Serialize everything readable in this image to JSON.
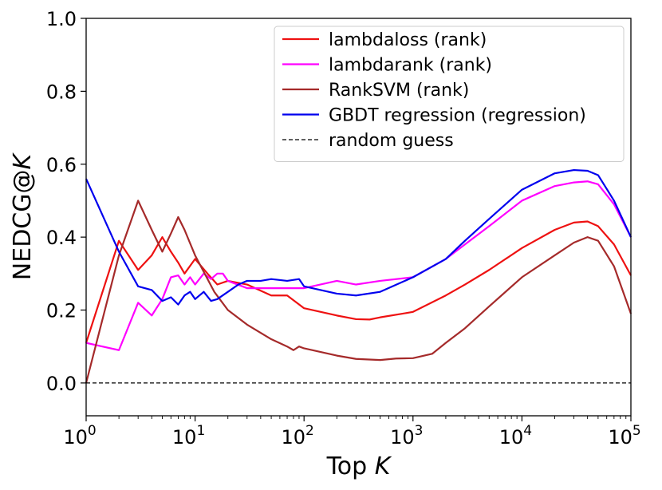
{
  "chart_data": {
    "type": "line",
    "title": "",
    "xlabel": "Top K",
    "ylabel": "NEDCG@K",
    "xscale": "log",
    "xlim": [
      1,
      100000
    ],
    "ylim": [
      -0.09,
      1.0
    ],
    "x_ticks": [
      {
        "value": 1,
        "base": "10",
        "exp": "0"
      },
      {
        "value": 10,
        "base": "10",
        "exp": "1"
      },
      {
        "value": 100,
        "base": "10",
        "exp": "2"
      },
      {
        "value": 1000,
        "base": "10",
        "exp": "3"
      },
      {
        "value": 10000,
        "base": "10",
        "exp": "4"
      },
      {
        "value": 100000,
        "base": "10",
        "exp": "5"
      }
    ],
    "y_ticks": [
      {
        "value": 0.0,
        "label": "0.0"
      },
      {
        "value": 0.2,
        "label": "0.2"
      },
      {
        "value": 0.4,
        "label": "0.4"
      },
      {
        "value": 0.6,
        "label": "0.6"
      },
      {
        "value": 0.8,
        "label": "0.8"
      },
      {
        "value": 1.0,
        "label": "1.0"
      }
    ],
    "grid": false,
    "legend_position": "top-right",
    "series": [
      {
        "name": "lambdaloss (rank)",
        "color": "#ee1111",
        "dash": "solid",
        "points": [
          [
            1,
            0.11
          ],
          [
            2,
            0.39
          ],
          [
            3,
            0.31
          ],
          [
            4,
            0.35
          ],
          [
            5,
            0.4
          ],
          [
            6,
            0.36
          ],
          [
            7,
            0.33
          ],
          [
            8,
            0.3
          ],
          [
            10,
            0.34
          ],
          [
            13,
            0.3
          ],
          [
            16,
            0.27
          ],
          [
            20,
            0.28
          ],
          [
            30,
            0.27
          ],
          [
            50,
            0.24
          ],
          [
            70,
            0.24
          ],
          [
            100,
            0.205
          ],
          [
            200,
            0.185
          ],
          [
            300,
            0.175
          ],
          [
            400,
            0.174
          ],
          [
            500,
            0.18
          ],
          [
            800,
            0.19
          ],
          [
            1000,
            0.195
          ],
          [
            2000,
            0.24
          ],
          [
            3000,
            0.27
          ],
          [
            5000,
            0.31
          ],
          [
            10000,
            0.37
          ],
          [
            20000,
            0.42
          ],
          [
            30000,
            0.44
          ],
          [
            40000,
            0.443
          ],
          [
            50000,
            0.43
          ],
          [
            70000,
            0.38
          ],
          [
            100000,
            0.295
          ]
        ]
      },
      {
        "name": "lambdarank (rank)",
        "color": "#ff00ff",
        "dash": "solid",
        "points": [
          [
            1,
            0.11
          ],
          [
            2,
            0.09
          ],
          [
            3,
            0.22
          ],
          [
            4,
            0.185
          ],
          [
            5,
            0.23
          ],
          [
            6,
            0.29
          ],
          [
            7,
            0.295
          ],
          [
            8,
            0.27
          ],
          [
            9,
            0.29
          ],
          [
            10,
            0.27
          ],
          [
            12,
            0.3
          ],
          [
            14,
            0.285
          ],
          [
            16,
            0.3
          ],
          [
            18,
            0.3
          ],
          [
            20,
            0.28
          ],
          [
            30,
            0.26
          ],
          [
            50,
            0.26
          ],
          [
            100,
            0.26
          ],
          [
            200,
            0.28
          ],
          [
            300,
            0.27
          ],
          [
            500,
            0.28
          ],
          [
            1000,
            0.29
          ],
          [
            2000,
            0.34
          ],
          [
            3000,
            0.38
          ],
          [
            5000,
            0.43
          ],
          [
            10000,
            0.5
          ],
          [
            20000,
            0.54
          ],
          [
            30000,
            0.55
          ],
          [
            40000,
            0.553
          ],
          [
            50000,
            0.545
          ],
          [
            70000,
            0.49
          ],
          [
            100000,
            0.4
          ]
        ]
      },
      {
        "name": "RankSVM (rank)",
        "color": "#a52a2a",
        "dash": "solid",
        "points": [
          [
            1,
            0.0
          ],
          [
            2,
            0.35
          ],
          [
            3,
            0.5
          ],
          [
            4,
            0.42
          ],
          [
            5,
            0.36
          ],
          [
            6,
            0.41
          ],
          [
            7,
            0.455
          ],
          [
            8,
            0.42
          ],
          [
            10,
            0.35
          ],
          [
            15,
            0.25
          ],
          [
            20,
            0.2
          ],
          [
            30,
            0.16
          ],
          [
            50,
            0.12
          ],
          [
            70,
            0.1
          ],
          [
            80,
            0.09
          ],
          [
            90,
            0.1
          ],
          [
            100,
            0.095
          ],
          [
            200,
            0.075
          ],
          [
            300,
            0.066
          ],
          [
            500,
            0.063
          ],
          [
            700,
            0.067
          ],
          [
            1000,
            0.068
          ],
          [
            1500,
            0.08
          ],
          [
            2000,
            0.11
          ],
          [
            3000,
            0.15
          ],
          [
            5000,
            0.21
          ],
          [
            10000,
            0.29
          ],
          [
            20000,
            0.35
          ],
          [
            30000,
            0.385
          ],
          [
            40000,
            0.4
          ],
          [
            50000,
            0.39
          ],
          [
            70000,
            0.32
          ],
          [
            100000,
            0.19
          ]
        ]
      },
      {
        "name": "GBDT regression (regression)",
        "color": "#0000ee",
        "dash": "solid",
        "points": [
          [
            1,
            0.56
          ],
          [
            2,
            0.36
          ],
          [
            3,
            0.265
          ],
          [
            4,
            0.255
          ],
          [
            5,
            0.225
          ],
          [
            6,
            0.235
          ],
          [
            7,
            0.215
          ],
          [
            8,
            0.24
          ],
          [
            9,
            0.25
          ],
          [
            10,
            0.23
          ],
          [
            12,
            0.25
          ],
          [
            14,
            0.225
          ],
          [
            16,
            0.23
          ],
          [
            20,
            0.25
          ],
          [
            25,
            0.27
          ],
          [
            30,
            0.28
          ],
          [
            40,
            0.28
          ],
          [
            50,
            0.285
          ],
          [
            70,
            0.28
          ],
          [
            90,
            0.285
          ],
          [
            100,
            0.265
          ],
          [
            200,
            0.245
          ],
          [
            300,
            0.24
          ],
          [
            500,
            0.25
          ],
          [
            1000,
            0.29
          ],
          [
            2000,
            0.34
          ],
          [
            3000,
            0.39
          ],
          [
            5000,
            0.45
          ],
          [
            10000,
            0.53
          ],
          [
            20000,
            0.575
          ],
          [
            30000,
            0.584
          ],
          [
            40000,
            0.582
          ],
          [
            50000,
            0.57
          ],
          [
            70000,
            0.5
          ],
          [
            100000,
            0.4
          ]
        ]
      },
      {
        "name": "random guess",
        "color": "#000000",
        "dash": "dashed",
        "points": [
          [
            1,
            0.0
          ],
          [
            100000,
            0.0
          ]
        ]
      }
    ]
  }
}
